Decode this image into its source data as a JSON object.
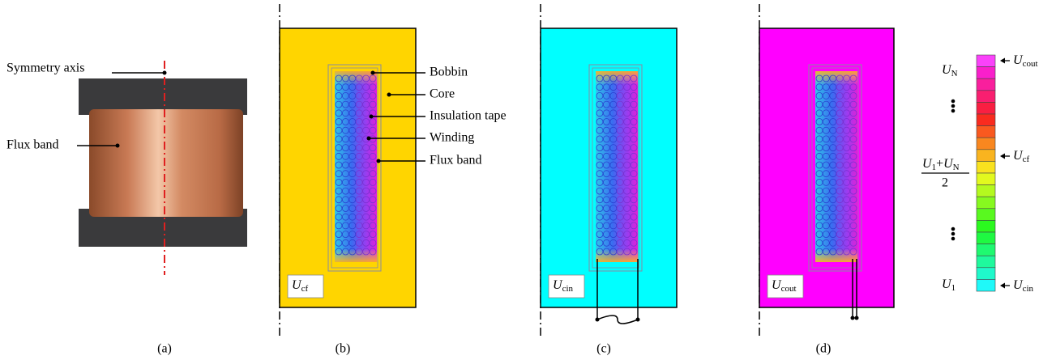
{
  "panels": [
    {
      "label": "(a)",
      "annotations": [
        "Symmetry axis",
        "Flux band"
      ]
    },
    {
      "label": "(b)",
      "potential": {
        "symbol": "U",
        "sub": "cf"
      },
      "annotations": [
        "Bobbin",
        "Core",
        "Insulation tape",
        "Winding",
        "Flux band"
      ]
    },
    {
      "label": "(c)",
      "potential": {
        "symbol": "U",
        "sub": "cin"
      }
    },
    {
      "label": "(d)",
      "potential": {
        "symbol": "U",
        "sub": "cout"
      }
    }
  ],
  "colorbar": {
    "top": {
      "symbol": "U",
      "sub": "N"
    },
    "bottom": {
      "symbol": "U",
      "sub": "1"
    },
    "middle": {
      "a": "U",
      "a_sub": "1",
      "op": "+",
      "b": "U",
      "b_sub": "N",
      "den": "2"
    },
    "markers": [
      {
        "symbol": "U",
        "sub": "cout"
      },
      {
        "symbol": "U",
        "sub": "cf"
      },
      {
        "symbol": "U",
        "sub": "cin"
      }
    ]
  }
}
